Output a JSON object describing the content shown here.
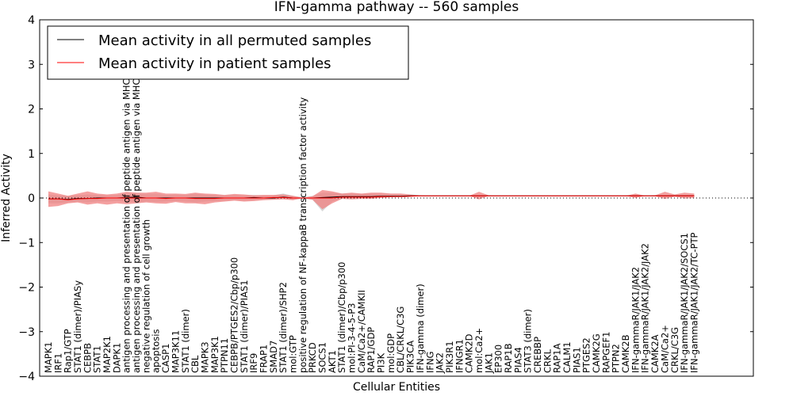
{
  "chart_data": {
    "type": "line",
    "title": "IFN-gamma pathway -- 560 samples",
    "xlabel": "Cellular Entities",
    "ylabel": "Inferred Activity",
    "ylim": [
      -4,
      4
    ],
    "yticks": [
      "-4",
      "-3",
      "-2",
      "-1",
      "0",
      "1",
      "2",
      "3",
      "4"
    ],
    "legend_position": "top-left",
    "entities": [
      "MAPK1",
      "IRF1",
      "Rap1/GTP",
      "STAT1 (dimer)/PIASy",
      "CEBPB",
      "STAT1",
      "MAP2K1",
      "DAPK1",
      "antigen processing and presentation of peptide antigen via MHC class",
      "antigen processing and presentation of peptide antigen via MHC class",
      "negative regulation of cell growth",
      "apoptosis",
      "CASP1",
      "MAP3K11",
      "STAT1 (dimer)",
      "CBL",
      "MAPK3",
      "MAP3K1",
      "PTPN11",
      "CEBPB/PTGES2/Cbp/p300",
      "STAT1 (dimer)/PIAS1",
      "IRF9",
      "FRAP1",
      "SMAD7",
      "STAT1 (dimer)/SHP2",
      "mol:GTP",
      "positive regulation of NF-kappaB transcription factor activity",
      "PRKCD",
      "SOCS1",
      "AKT1",
      "STAT1 (dimer)/Cbp/p300",
      "mol:PI-3-4-5-P3",
      "CaM/Ca2+/CAMKII",
      "RAP1/GDP",
      "PI3K",
      "mol:GDP",
      "CBL/CRKL/C3G",
      "PIK3CA",
      "IFN-gamma (dimer)",
      "IFNG",
      "JAK2",
      "PIK3R1",
      "IFNGR1",
      "CAMK2D",
      "mol:Ca2+",
      "JAK1",
      "EP300",
      "RAP1B",
      "PIAS4",
      "STAT3 (dimer)",
      "CREBBP",
      "CRKL",
      "RAP1A",
      "CALM1",
      "PIAS1",
      "PTGES2",
      "CAMK2G",
      "RAPGEF1",
      "PTPN2",
      "CAMK2B",
      "IFN-gammaR/JAK1/JAK2",
      "IFN-gammaR/JAK1/JAK2/JAK2",
      "CAMK2A",
      "CaM/Ca2+",
      "CRKL/C3G",
      "IFN-gammaR/JAK1/JAK2/SOCS1",
      "IFN-gammaR/JAK1/JAK2/TC-PTP"
    ],
    "series": [
      {
        "name": "Mean activity in all permuted samples",
        "color": "#000000",
        "values": [
          -0.02,
          -0.02,
          -0.03,
          -0.01,
          -0.01,
          0.0,
          0.0,
          0.0,
          0.01,
          0.02,
          0.0,
          0.0,
          0.0,
          0.0,
          0.0,
          0.0,
          0.0,
          0.0,
          0.0,
          0.0,
          0.0,
          0.01,
          0.0,
          0.0,
          0.02,
          0.0,
          0.0,
          0.0,
          0.01,
          0.02,
          0.03,
          0.03,
          0.03,
          0.03,
          0.04,
          0.04,
          0.04,
          0.05,
          0.05,
          0.05,
          0.05,
          0.05,
          0.05,
          0.05,
          0.05,
          0.05,
          0.05,
          0.05,
          0.05,
          0.05,
          0.05,
          0.05,
          0.05,
          0.05,
          0.05,
          0.05,
          0.05,
          0.05,
          0.05,
          0.05,
          0.05,
          0.05,
          0.05,
          0.05,
          0.05,
          0.05,
          0.05
        ]
      },
      {
        "name": "Mean activity in patient samples",
        "color": "#ff0000",
        "values": [
          -0.02,
          -0.02,
          -0.04,
          -0.02,
          -0.01,
          -0.01,
          0.0,
          0.0,
          0.0,
          0.0,
          0.0,
          0.0,
          -0.01,
          0.0,
          0.0,
          -0.01,
          -0.01,
          -0.01,
          0.0,
          0.0,
          0.0,
          0.0,
          0.0,
          0.01,
          0.01,
          0.0,
          0.0,
          0.0,
          0.0,
          0.0,
          0.02,
          0.02,
          0.02,
          0.02,
          0.03,
          0.03,
          0.03,
          0.04,
          0.05,
          0.05,
          0.05,
          0.05,
          0.05,
          0.05,
          0.05,
          0.05,
          0.05,
          0.05,
          0.05,
          0.05,
          0.05,
          0.05,
          0.05,
          0.05,
          0.05,
          0.05,
          0.05,
          0.05,
          0.05,
          0.05,
          0.05,
          0.05,
          0.05,
          0.05,
          0.05,
          0.05,
          0.05
        ]
      }
    ],
    "patient_band": {
      "upper": [
        0.15,
        0.1,
        0.05,
        0.1,
        0.15,
        0.1,
        0.08,
        0.1,
        0.14,
        0.12,
        0.12,
        0.14,
        0.1,
        0.1,
        0.09,
        0.12,
        0.1,
        0.09,
        0.07,
        0.09,
        0.08,
        0.06,
        0.07,
        0.07,
        0.08,
        0.05,
        0.0,
        0.04,
        0.18,
        0.15,
        0.1,
        0.12,
        0.1,
        0.12,
        0.12,
        0.1,
        0.1,
        0.08,
        0.06,
        0.05,
        0.05,
        0.05,
        0.05,
        0.05,
        0.14,
        0.06,
        0.05,
        0.05,
        0.05,
        0.05,
        0.05,
        0.05,
        0.05,
        0.05,
        0.05,
        0.05,
        0.05,
        0.05,
        0.05,
        0.05,
        0.1,
        0.05,
        0.06,
        0.14,
        0.08,
        0.12,
        0.1
      ],
      "lower": [
        -0.2,
        -0.18,
        -0.12,
        -0.1,
        -0.15,
        -0.12,
        -0.15,
        -0.12,
        -0.14,
        -0.12,
        -0.1,
        -0.12,
        -0.13,
        -0.09,
        -0.12,
        -0.12,
        -0.14,
        -0.1,
        -0.08,
        -0.06,
        -0.08,
        -0.07,
        -0.05,
        -0.04,
        -0.03,
        -0.05,
        0.0,
        -0.04,
        -0.25,
        -0.12,
        -0.02,
        -0.03,
        -0.02,
        -0.02,
        0.0,
        0.02,
        0.03,
        0.05,
        0.05,
        0.05,
        0.05,
        0.05,
        0.05,
        0.05,
        -0.03,
        0.05,
        0.05,
        0.05,
        0.05,
        0.05,
        0.05,
        0.05,
        0.05,
        0.05,
        0.05,
        0.05,
        0.05,
        0.05,
        0.05,
        0.05,
        0.0,
        0.05,
        0.04,
        -0.02,
        0.03,
        -0.01,
        0.0
      ]
    },
    "permuted_band": {
      "upper": [
        0.08,
        0.06,
        0.05,
        0.06,
        0.08,
        0.07,
        0.06,
        0.07,
        0.1,
        0.1,
        0.09,
        0.1,
        0.07,
        0.08,
        0.07,
        0.1,
        0.08,
        0.07,
        0.06,
        0.07,
        0.06,
        0.07,
        0.06,
        0.06,
        0.1,
        0.05,
        0.02,
        0.05,
        0.12,
        0.12,
        0.1,
        0.1,
        0.09,
        0.1,
        0.1,
        0.09,
        0.09,
        0.07,
        0.06,
        0.05,
        0.05,
        0.05,
        0.05,
        0.05,
        0.05,
        0.05,
        0.05,
        0.05,
        0.05,
        0.05,
        0.05,
        0.05,
        0.05,
        0.05,
        0.05,
        0.05,
        0.05,
        0.05,
        0.05,
        0.05,
        0.05,
        0.05,
        0.05,
        0.06,
        0.05,
        0.06,
        0.05
      ],
      "lower": [
        -0.12,
        -0.12,
        -0.1,
        -0.08,
        -0.1,
        -0.08,
        -0.08,
        -0.07,
        -0.08,
        -0.1,
        -0.08,
        -0.09,
        -0.08,
        -0.07,
        -0.08,
        -0.1,
        -0.08,
        -0.07,
        -0.06,
        -0.05,
        -0.06,
        -0.05,
        -0.04,
        -0.03,
        -0.02,
        -0.04,
        -0.02,
        -0.04,
        -0.3,
        -0.08,
        -0.01,
        -0.01,
        0.0,
        0.0,
        0.01,
        0.02,
        0.03,
        0.04,
        0.05,
        0.05,
        0.05,
        0.05,
        0.05,
        0.05,
        0.05,
        0.05,
        0.05,
        0.05,
        0.05,
        0.05,
        0.05,
        0.05,
        0.05,
        0.05,
        0.05,
        0.05,
        0.05,
        0.05,
        0.05,
        0.05,
        0.05,
        0.05,
        0.05,
        0.04,
        0.05,
        0.04,
        0.05
      ]
    },
    "reference_line": {
      "y": 0,
      "style": "dotted"
    },
    "colors": {
      "patient_band": "#f08080",
      "permuted_band": "#c8c8c8"
    }
  }
}
